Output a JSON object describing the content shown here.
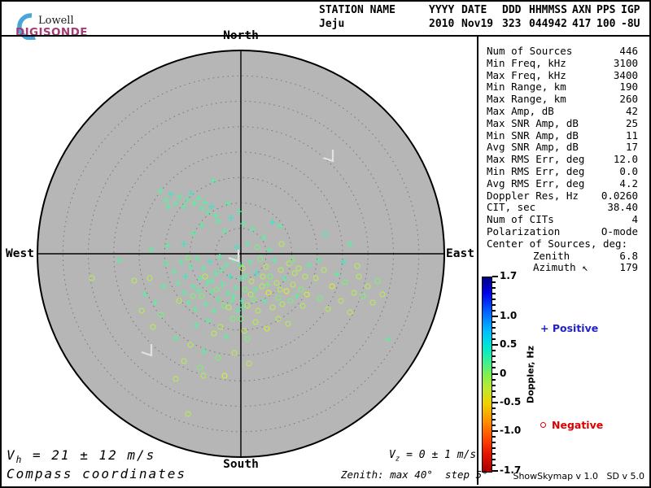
{
  "logo": {
    "name": "Lowell",
    "product": "DIGISONDE",
    "brand_color": "#a33b74",
    "arc_color": "#4ba5d8"
  },
  "header": {
    "columns": [
      {
        "label": "STATION NAME",
        "value": "Jeju"
      },
      {
        "label": "YYYY",
        "value": "2010"
      },
      {
        "label": "DATE",
        "value": "Nov19"
      },
      {
        "label": "DDD",
        "value": "323"
      },
      {
        "label": "HHMMSS",
        "value": "044942"
      },
      {
        "label": "AXN",
        "value": "417"
      },
      {
        "label": "PPS",
        "value": "100"
      },
      {
        "label": "IGP",
        "value": "-8U"
      }
    ]
  },
  "compass": {
    "north": "North",
    "south": "South",
    "east": "East",
    "west": "West"
  },
  "stats": {
    "rows": [
      {
        "label": "Num of Sources",
        "value": "446"
      },
      {
        "label": "Min Freq, kHz",
        "value": "3100"
      },
      {
        "label": "Max Freq, kHz",
        "value": "3400"
      },
      {
        "label": "Min Range, km",
        "value": "190"
      },
      {
        "label": "Max Range, km",
        "value": "260"
      },
      {
        "label": "Max Amp, dB",
        "value": "42"
      },
      {
        "label": "Max SNR Amp, dB",
        "value": "25"
      },
      {
        "label": "Min SNR Amp, dB",
        "value": "11"
      },
      {
        "label": "Avg SNR Amp, dB",
        "value": "17"
      },
      {
        "label": "Max RMS Err, deg",
        "value": "12.0"
      },
      {
        "label": "Min RMS Err, deg",
        "value": "0.0"
      },
      {
        "label": "Avg RMS Err, deg",
        "value": "4.2"
      },
      {
        "label": "Doppler Res, Hz",
        "value": "0.0260"
      },
      {
        "label": "CIT, sec",
        "value": "38.40"
      },
      {
        "label": "Num of CITs",
        "value": "4"
      },
      {
        "label": "Polarization",
        "value": "O-mode"
      },
      {
        "label": "Center of Sources, deg:",
        "value": ""
      },
      {
        "label": "Zenith",
        "value": "6.8",
        "indent": true
      },
      {
        "label": "Azimuth ↖",
        "value": "179",
        "indent": true
      }
    ]
  },
  "colorbar": {
    "title": "Doppler, Hz",
    "max": 1.7,
    "min": -1.7,
    "minor_step": 0.1,
    "tick_values": [
      1.7,
      1.0,
      0.5,
      0,
      -0.5,
      -1.0,
      -1.7
    ],
    "tick_labels": [
      "1.7",
      "1.0",
      "0.5",
      "0",
      "-0.5",
      "-1.0",
      "-1.7"
    ]
  },
  "legend": {
    "positive_marker": "+",
    "positive_label": "Positive",
    "positive_color": "#2222cc",
    "negative_marker": "o",
    "negative_label": "Negative",
    "negative_color": "#dd0000"
  },
  "footer": {
    "vh_sym": "V",
    "vh_sub": "h",
    "vh_value": " = 21 ± 12 m/s",
    "coords_mode": "Compass coordinates",
    "vz_sym": "V",
    "vz_sub": "z",
    "vz_value": " = 0 ± 1 m/s",
    "zenith_note": "Zenith: max 40°  step 5°",
    "version": "ShowSkymap v 1.0   SD v 5.0"
  },
  "chart_data": {
    "type": "scatter",
    "title": "Digisonde skymap of ionospheric echo sources, compass coordinates",
    "projection": "polar zenith-azimuth, North up, East right",
    "zenith_max_deg": 40,
    "zenith_step_deg": 5,
    "ring_count": 7,
    "doppler_range_hz": [
      -1.7,
      1.7
    ],
    "num_sources_reported": 446,
    "marker_meaning": {
      "plus": "positive Doppler",
      "circle": "negative Doppler"
    },
    "units": "points are [dx,dy,type,colorIndex]; dx,dy = pixel offset from zenith center, 250 px = 40 deg zenith; type 0=plus, 1=circle",
    "palette": [
      "#58f0a0",
      "#3fe6c2",
      "#7bee7b",
      "#b6e85a",
      "#d8e93c"
    ],
    "disk_color": "#b6b6b6",
    "points": [
      [
        -99,
        -77,
        0,
        0
      ],
      [
        -92,
        -66,
        0,
        0
      ],
      [
        -86,
        -73,
        0,
        1
      ],
      [
        -80,
        -62,
        0,
        0
      ],
      [
        -75,
        -70,
        0,
        0
      ],
      [
        -70,
        -58,
        0,
        0
      ],
      [
        -66,
        -66,
        0,
        0
      ],
      [
        -61,
        -74,
        0,
        1
      ],
      [
        -57,
        -62,
        0,
        0
      ],
      [
        -52,
        -68,
        0,
        0
      ],
      [
        -48,
        -56,
        0,
        0
      ],
      [
        -44,
        -63,
        0,
        0
      ],
      [
        -40,
        -51,
        0,
        0
      ],
      [
        -36,
        -58,
        0,
        1
      ],
      [
        -31,
        -47,
        0,
        0
      ],
      [
        -89,
        -58,
        0,
        0
      ],
      [
        -34,
        -90,
        0,
        0
      ],
      [
        -48,
        -35,
        0,
        0
      ],
      [
        -28,
        -40,
        0,
        0
      ],
      [
        -12,
        -44,
        0,
        1
      ],
      [
        3,
        -37,
        0,
        0
      ],
      [
        -20,
        -28,
        0,
        0
      ],
      [
        14,
        -30,
        0,
        0
      ],
      [
        -2,
        -52,
        0,
        0
      ],
      [
        28,
        -20,
        0,
        0
      ],
      [
        -58,
        -25,
        0,
        0
      ],
      [
        48,
        -34,
        0,
        0
      ],
      [
        -16,
        -62,
        0,
        0
      ],
      [
        39,
        -39,
        0,
        1
      ],
      [
        104,
        -24,
        0,
        0
      ],
      [
        20,
        -8,
        1,
        2
      ],
      [
        35,
        -5,
        0,
        0
      ],
      [
        8,
        -12,
        0,
        0
      ],
      [
        -5,
        -8,
        0,
        1
      ],
      [
        50,
        -12,
        1,
        3
      ],
      [
        -90,
        -10,
        0,
        0
      ],
      [
        -70,
        -12,
        0,
        1
      ],
      [
        -110,
        -5,
        0,
        0
      ],
      [
        -82,
        22,
        0,
        0
      ],
      [
        -77,
        36,
        0,
        0
      ],
      [
        -73,
        10,
        0,
        0
      ],
      [
        -70,
        48,
        0,
        0
      ],
      [
        -68,
        28,
        0,
        1
      ],
      [
        -64,
        60,
        0,
        0
      ],
      [
        -62,
        16,
        0,
        0
      ],
      [
        -58,
        40,
        0,
        0
      ],
      [
        -56,
        68,
        0,
        0
      ],
      [
        -54,
        6,
        0,
        0
      ],
      [
        -50,
        30,
        0,
        0
      ],
      [
        -48,
        52,
        1,
        2
      ],
      [
        -46,
        18,
        0,
        0
      ],
      [
        -43,
        62,
        0,
        0
      ],
      [
        -41,
        36,
        0,
        0
      ],
      [
        -38,
        10,
        0,
        1
      ],
      [
        -36,
        46,
        0,
        0
      ],
      [
        -33,
        70,
        0,
        0
      ],
      [
        -31,
        24,
        0,
        0
      ],
      [
        -28,
        56,
        0,
        0
      ],
      [
        -26,
        4,
        0,
        0
      ],
      [
        -23,
        38,
        0,
        0
      ],
      [
        -21,
        64,
        1,
        2
      ],
      [
        -18,
        14,
        0,
        0
      ],
      [
        -16,
        48,
        0,
        0
      ],
      [
        -13,
        28,
        0,
        1
      ],
      [
        -11,
        58,
        0,
        0
      ],
      [
        -8,
        8,
        0,
        0
      ],
      [
        -6,
        42,
        0,
        0
      ],
      [
        -4,
        70,
        0,
        0
      ],
      [
        -76,
        58,
        1,
        3
      ],
      [
        -59,
        52,
        1,
        2
      ],
      [
        -44,
        28,
        1,
        3
      ],
      [
        -30,
        44,
        1,
        2
      ],
      [
        -15,
        66,
        1,
        3
      ],
      [
        -65,
        5,
        1,
        2
      ],
      [
        -36,
        33,
        0,
        0
      ],
      [
        -52,
        45,
        0,
        0
      ],
      [
        -24,
        20,
        0,
        0
      ],
      [
        -9,
        52,
        0,
        0
      ],
      [
        0,
        30,
        0,
        0
      ],
      [
        1,
        58,
        0,
        0
      ],
      [
        -1,
        14,
        0,
        0
      ],
      [
        0,
        80,
        1,
        2
      ],
      [
        2,
        66,
        0,
        0
      ],
      [
        2,
        18,
        1,
        3
      ],
      [
        5,
        44,
        1,
        2
      ],
      [
        8,
        64,
        1,
        3
      ],
      [
        11,
        10,
        0,
        0
      ],
      [
        13,
        34,
        1,
        3
      ],
      [
        16,
        56,
        1,
        2
      ],
      [
        19,
        24,
        0,
        1
      ],
      [
        21,
        70,
        1,
        3
      ],
      [
        24,
        6,
        1,
        2
      ],
      [
        26,
        40,
        1,
        3
      ],
      [
        29,
        58,
        0,
        0
      ],
      [
        31,
        16,
        1,
        3
      ],
      [
        34,
        48,
        1,
        4
      ],
      [
        36,
        28,
        1,
        2
      ],
      [
        39,
        66,
        1,
        3
      ],
      [
        41,
        8,
        0,
        0
      ],
      [
        44,
        36,
        1,
        3
      ],
      [
        46,
        54,
        1,
        2
      ],
      [
        49,
        20,
        1,
        3
      ],
      [
        51,
        62,
        1,
        3
      ],
      [
        54,
        30,
        0,
        0
      ],
      [
        56,
        46,
        1,
        4
      ],
      [
        59,
        12,
        1,
        3
      ],
      [
        61,
        58,
        1,
        2
      ],
      [
        64,
        38,
        1,
        3
      ],
      [
        66,
        24,
        1,
        3
      ],
      [
        69,
        52,
        0,
        0
      ],
      [
        71,
        18,
        1,
        3
      ],
      [
        74,
        44,
        1,
        2
      ],
      [
        76,
        64,
        1,
        3
      ],
      [
        79,
        28,
        1,
        3
      ],
      [
        81,
        50,
        1,
        4
      ],
      [
        84,
        14,
        0,
        0
      ],
      [
        6,
        28,
        0,
        0
      ],
      [
        18,
        44,
        0,
        0
      ],
      [
        33,
        38,
        0,
        2
      ],
      [
        48,
        44,
        1,
        3
      ],
      [
        63,
        8,
        1,
        2
      ],
      [
        27,
        28,
        1,
        3
      ],
      [
        12,
        50,
        1,
        3
      ],
      [
        -40,
        82,
        0,
        0
      ],
      [
        -25,
        90,
        1,
        3
      ],
      [
        -10,
        80,
        1,
        2
      ],
      [
        4,
        95,
        1,
        3
      ],
      [
        18,
        84,
        1,
        3
      ],
      [
        32,
        92,
        1,
        4
      ],
      [
        -55,
        88,
        0,
        0
      ],
      [
        46,
        80,
        1,
        3
      ],
      [
        -18,
        102,
        0,
        0
      ],
      [
        8,
        105,
        1,
        2
      ],
      [
        -33,
        98,
        1,
        3
      ],
      [
        58,
        86,
        1,
        3
      ],
      [
        92,
        30,
        1,
        3
      ],
      [
        97,
        55,
        1,
        2
      ],
      [
        102,
        20,
        1,
        3
      ],
      [
        107,
        68,
        1,
        3
      ],
      [
        112,
        40,
        1,
        4
      ],
      [
        118,
        25,
        0,
        0
      ],
      [
        123,
        58,
        1,
        3
      ],
      [
        128,
        35,
        1,
        2
      ],
      [
        134,
        72,
        1,
        3
      ],
      [
        139,
        48,
        1,
        3
      ],
      [
        145,
        28,
        1,
        3
      ],
      [
        150,
        52,
        1,
        2
      ],
      [
        156,
        40,
        1,
        3
      ],
      [
        162,
        60,
        1,
        3
      ],
      [
        168,
        34,
        1,
        2
      ],
      [
        174,
        50,
        1,
        3
      ],
      [
        96,
        8,
        0,
        0
      ],
      [
        126,
        10,
        0,
        1
      ],
      [
        143,
        15,
        1,
        3
      ],
      [
        -95,
        40,
        0,
        0
      ],
      [
        -105,
        60,
        0,
        0
      ],
      [
        -112,
        30,
        1,
        3
      ],
      [
        -98,
        75,
        1,
        2
      ],
      [
        -118,
        50,
        0,
        0
      ],
      [
        -92,
        12,
        0,
        0
      ],
      [
        -108,
        90,
        1,
        3
      ],
      [
        -122,
        70,
        1,
        3
      ],
      [
        -131,
        33,
        1,
        3
      ],
      [
        -150,
        8,
        0,
        0
      ],
      [
        -80,
        104,
        0,
        0
      ],
      [
        -62,
        112,
        1,
        3
      ],
      [
        -45,
        120,
        0,
        0
      ],
      [
        -28,
        128,
        1,
        2
      ],
      [
        -8,
        122,
        1,
        3
      ],
      [
        -70,
        132,
        1,
        3
      ],
      [
        -50,
        140,
        1,
        2
      ],
      [
        -46,
        150,
        1,
        3
      ],
      [
        -80,
        154,
        1,
        3
      ],
      [
        -65,
        197,
        1,
        3
      ],
      [
        -20,
        150,
        1,
        4
      ],
      [
        10,
        135,
        1,
        3
      ],
      [
        -183,
        30,
        1,
        3
      ],
      [
        181,
        105,
        0,
        0
      ],
      [
        134,
        -12,
        0,
        0
      ]
    ],
    "gray_markers": [
      [
        112,
        -119
      ],
      [
        -111,
        120
      ],
      [
        -4,
        4
      ]
    ]
  }
}
